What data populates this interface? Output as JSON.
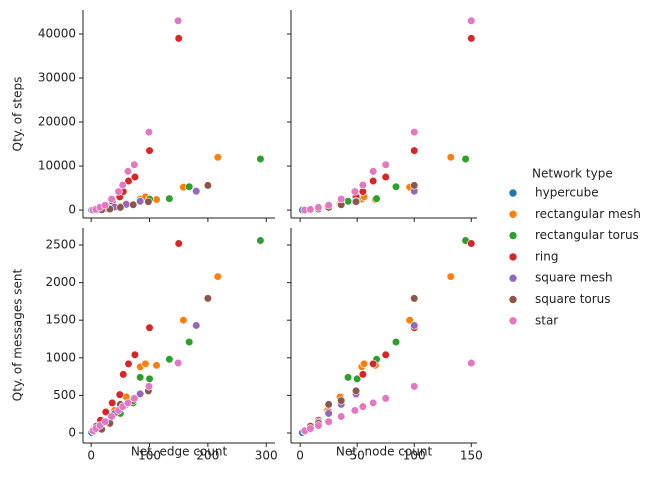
{
  "chart_data": {
    "type": "scatter",
    "legend_title": "Network type",
    "legend_position": "right",
    "xlabel": "Net. edge count",
    "xlim": [
      -14,
      315
    ],
    "xticks": [
      0,
      100,
      200,
      300
    ],
    "x2label": "Net. node count",
    "x2lim": [
      -8,
      155
    ],
    "x2ticks": [
      0,
      50,
      100,
      150
    ],
    "ylabel": "Qty. of steps",
    "ylim": [
      -1800,
      45450
    ],
    "yticks": [
      0,
      10000,
      20000,
      30000,
      40000
    ],
    "y2label": "Qty. of messages sent",
    "y2lim": [
      -133,
      2726
    ],
    "y2ticks": [
      0,
      500,
      1000,
      1500,
      2000,
      2500
    ],
    "series": [
      {
        "name": "hypercube",
        "color": "#1f77b4",
        "edge_count": [
          1,
          4,
          12,
          32
        ],
        "node_count": [
          2,
          4,
          8,
          16
        ],
        "steps": [
          5,
          20,
          60,
          150
        ],
        "messages": [
          5,
          20,
          50,
          120
        ]
      },
      {
        "name": "rectangular mesh",
        "color": "#ff7f0e",
        "edge_count": [
          12,
          24,
          40,
          60,
          84,
          93,
          112,
          158,
          217
        ],
        "node_count": [
          9,
          16,
          24,
          35,
          54,
          56,
          66,
          96,
          132
        ],
        "steps": [
          100,
          400,
          800,
          1500,
          2500,
          3000,
          2400,
          5200,
          12000
        ],
        "messages": [
          60,
          150,
          300,
          480,
          880,
          920,
          900,
          1500,
          2080
        ]
      },
      {
        "name": "rectangular torus",
        "color": "#2ca02c",
        "edge_count": [
          18,
          32,
          50,
          72,
          84,
          100,
          134,
          168,
          290
        ],
        "node_count": [
          9,
          16,
          25,
          36,
          42,
          50,
          67,
          84,
          145
        ],
        "steps": [
          80,
          300,
          800,
          1300,
          2000,
          2500,
          2600,
          5300,
          11600
        ],
        "messages": [
          60,
          150,
          260,
          400,
          740,
          720,
          980,
          1210,
          2560
        ]
      },
      {
        "name": "ring",
        "color": "#d62728",
        "edge_count": [
          4,
          9,
          16,
          25,
          36,
          49,
          55,
          64,
          75,
          100,
          150
        ],
        "node_count": [
          4,
          9,
          16,
          25,
          36,
          49,
          55,
          64,
          75,
          100,
          150
        ],
        "steps": [
          30,
          150,
          500,
          1000,
          2000,
          3000,
          4200,
          6600,
          7500,
          13500,
          39000
        ],
        "messages": [
          30,
          90,
          170,
          280,
          400,
          510,
          780,
          920,
          1040,
          1400,
          2520
        ]
      },
      {
        "name": "square mesh",
        "color": "#9467bd",
        "edge_count": [
          4,
          12,
          24,
          40,
          60,
          84,
          180
        ],
        "node_count": [
          4,
          9,
          16,
          25,
          36,
          49,
          100
        ],
        "steps": [
          20,
          100,
          350,
          700,
          1300,
          2000,
          4300
        ],
        "messages": [
          20,
          60,
          150,
          260,
          380,
          520,
          1430
        ]
      },
      {
        "name": "square torus",
        "color": "#8c564b",
        "edge_count": [
          18,
          32,
          50,
          72,
          98,
          200
        ],
        "node_count": [
          9,
          16,
          25,
          36,
          49,
          100
        ],
        "steps": [
          60,
          250,
          600,
          1200,
          1900,
          5600
        ],
        "messages": [
          50,
          130,
          380,
          430,
          560,
          1790
        ]
      },
      {
        "name": "star",
        "color": "#e377c2",
        "edge_count": [
          3,
          8,
          15,
          24,
          35,
          47,
          54,
          63,
          74,
          99,
          149
        ],
        "node_count": [
          4,
          9,
          16,
          25,
          36,
          48,
          55,
          64,
          75,
          100,
          150
        ],
        "steps": [
          20,
          150,
          600,
          1100,
          2500,
          4200,
          5700,
          8800,
          10300,
          17700,
          43000
        ],
        "messages": [
          30,
          60,
          100,
          150,
          220,
          300,
          350,
          400,
          460,
          620,
          930
        ]
      }
    ]
  }
}
